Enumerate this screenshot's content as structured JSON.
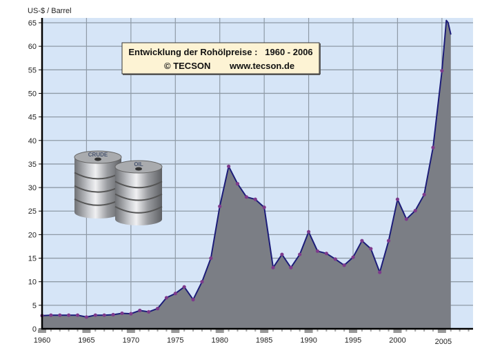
{
  "chart_data": {
    "type": "area",
    "title": "Entwicklung der Rohölpreise :   1960 - 2006",
    "subtitle_left": "© TECSON",
    "subtitle_right": "www.tecson.de",
    "ylabel": "US-$ / Barrel",
    "xlabel": "",
    "xlim": [
      1960,
      2008.5
    ],
    "ylim": [
      0,
      65
    ],
    "yticks": [
      0,
      5,
      10,
      15,
      20,
      25,
      30,
      35,
      40,
      45,
      50,
      55,
      60,
      65
    ],
    "xticks": [
      1960,
      1965,
      1970,
      1975,
      1980,
      1985,
      1990,
      1995,
      2000,
      2005
    ],
    "grid": true,
    "legend": "none",
    "image_labels": [
      "CRUDE",
      "OIL"
    ],
    "x": [
      1960,
      1961,
      1962,
      1963,
      1964,
      1965,
      1966,
      1967,
      1968,
      1969,
      1970,
      1971,
      1972,
      1973,
      1974,
      1975,
      1976,
      1977,
      1978,
      1979,
      1980,
      1981,
      1982,
      1983,
      1984,
      1985,
      1986,
      1987,
      1988,
      1989,
      1990,
      1991,
      1992,
      1993,
      1994,
      1995,
      1996,
      1997,
      1998,
      1999,
      2000,
      2001,
      2002,
      2003,
      2004,
      2005
    ],
    "values": [
      2.8,
      2.9,
      2.9,
      2.9,
      2.9,
      2.5,
      2.9,
      2.9,
      3.0,
      3.3,
      3.2,
      3.9,
      3.6,
      4.3,
      6.6,
      7.5,
      8.9,
      6.2,
      10.0,
      15.0,
      26.0,
      34.5,
      30.8,
      28.0,
      27.5,
      25.8,
      13.0,
      15.8,
      13.0,
      15.8,
      20.6,
      16.5,
      16.0,
      14.8,
      13.5,
      15.2,
      18.7,
      17.0,
      12.0,
      18.7,
      27.5,
      23.3,
      25.1,
      28.5,
      38.5,
      54.8
    ],
    "tail": {
      "x": [
        2005.5,
        2005.7,
        2006.0
      ],
      "values": [
        65.5,
        65.0,
        62.5
      ]
    },
    "colors": {
      "plot_bg": "#d6e5f7",
      "grid": "#8e9aa6",
      "area": "#7b7e85",
      "line": "#1c1c78",
      "marker": "#7d3a8c",
      "title_bg": "#fdf3d4"
    }
  }
}
